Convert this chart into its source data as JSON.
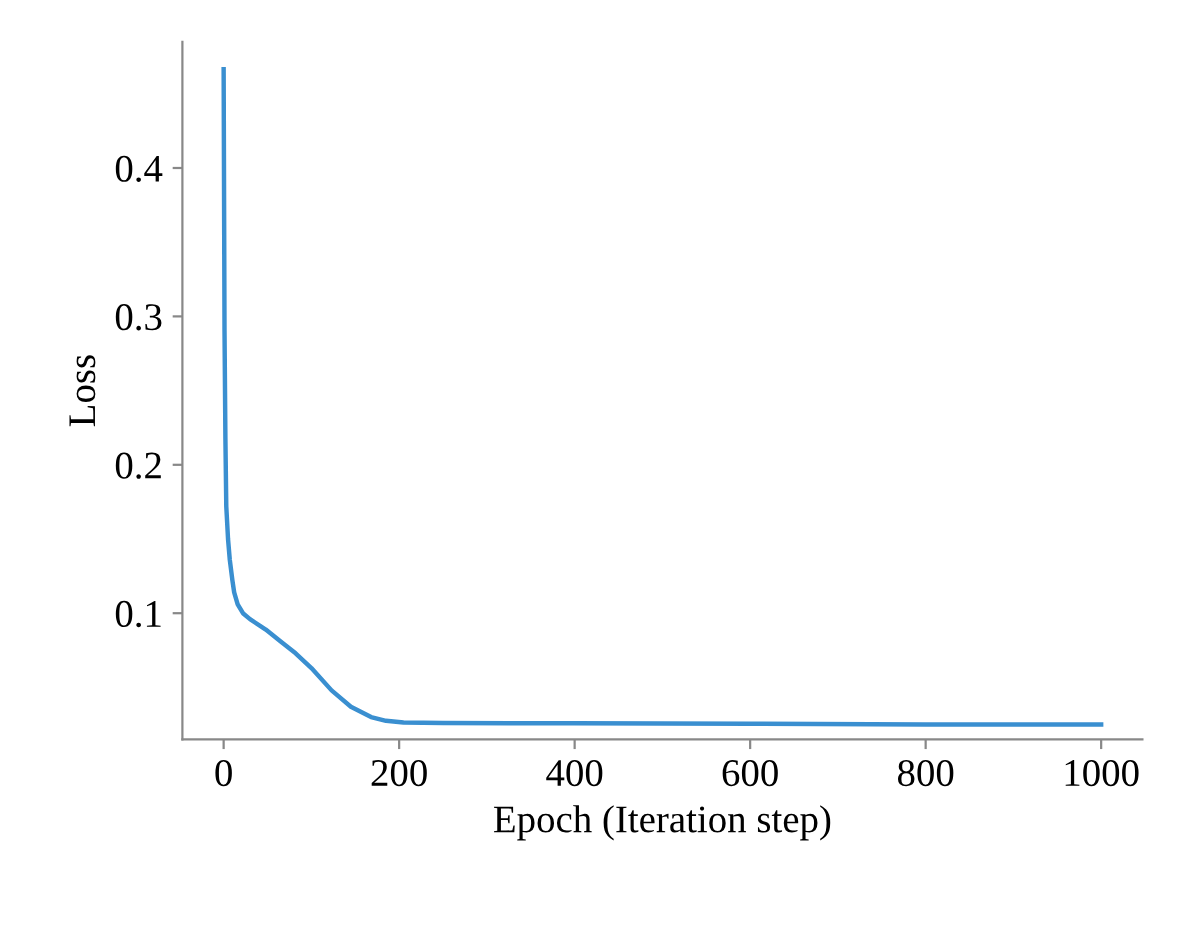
{
  "chart_data": {
    "type": "line",
    "xlabel": "Epoch (Iteration step)",
    "ylabel": "Loss",
    "xlim": [
      -47,
      1047
    ],
    "ylim": [
      0.015,
      0.485
    ],
    "xticks": [
      0,
      200,
      400,
      600,
      800,
      1000
    ],
    "yticks": [
      0.1,
      0.2,
      0.3,
      0.4
    ],
    "grid": false,
    "legend": false,
    "series": [
      {
        "color": "#3a8fd0",
        "x": [
          0,
          1,
          2,
          3,
          5,
          7,
          10,
          12,
          16,
          22,
          30,
          48,
          65,
          82,
          100,
          123,
          145,
          168,
          185,
          205,
          250,
          400,
          600,
          800,
          1000
        ],
        "values": [
          0.4665,
          0.29,
          0.218,
          0.172,
          0.15,
          0.136,
          0.122,
          0.114,
          0.106,
          0.1,
          0.096,
          0.089,
          0.081,
          0.073,
          0.063,
          0.048,
          0.037,
          0.03,
          0.0275,
          0.0263,
          0.026,
          0.0258,
          0.0255,
          0.025,
          0.025
        ]
      }
    ]
  }
}
